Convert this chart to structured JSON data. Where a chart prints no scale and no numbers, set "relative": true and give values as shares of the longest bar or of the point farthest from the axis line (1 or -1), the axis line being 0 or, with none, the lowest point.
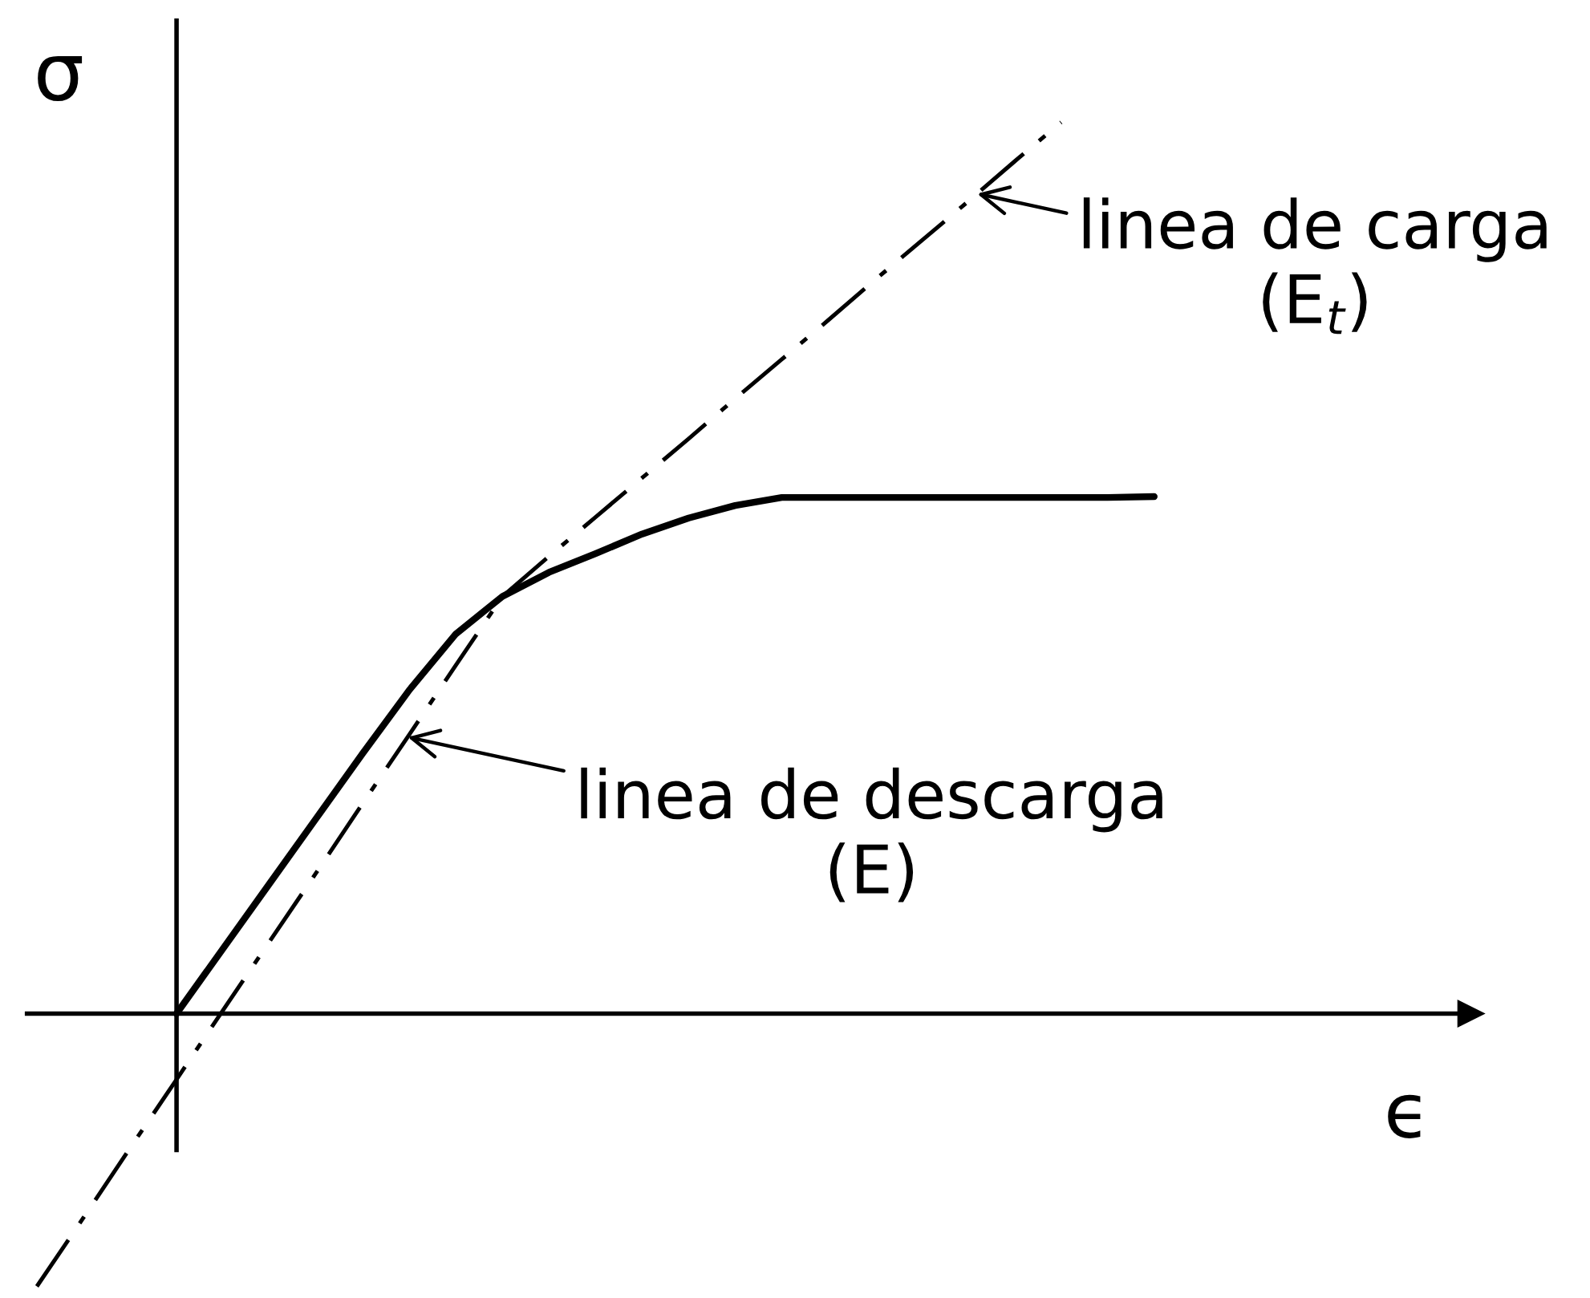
{
  "chart_data": {
    "type": "line",
    "relative": true,
    "tick_labels": false,
    "xlabel": "ϵ",
    "ylabel": "σ",
    "categories": [
      null,
      null,
      null,
      null,
      null,
      null,
      null,
      null,
      null,
      null,
      null,
      null,
      null,
      null,
      null,
      null,
      null,
      null,
      null,
      null,
      null,
      null,
      null,
      null,
      null
    ],
    "series": [
      {
        "color": "#000000",
        "line_style": "solid",
        "values": [
          null,
          null,
          null,
          0,
          0.073,
          0.146,
          0.219,
          0.292,
          0.363,
          0.426,
          0.468,
          0.495,
          0.516,
          0.538,
          0.556,
          0.57,
          0.579,
          0.579,
          0.579,
          0.579,
          0.579,
          0.579,
          0.579,
          0.579,
          0.58
        ]
      },
      {
        "color": "#000000",
        "line_style": "dashdot",
        "values": [
          -0.306,
          -0.229,
          -0.151,
          -0.074,
          0.004,
          0.081,
          0.158,
          0.236,
          0.313,
          0.391,
          0.468,
          0.513,
          0.557,
          0.601,
          0.645,
          0.69,
          0.734,
          0.778,
          0.823,
          0.867,
          0.911,
          0.956,
          1.0,
          null,
          null
        ]
      }
    ],
    "annotations": [
      "linea de carga\n(E$_{t}$)",
      "linea de descarga\n(E)"
    ]
  }
}
